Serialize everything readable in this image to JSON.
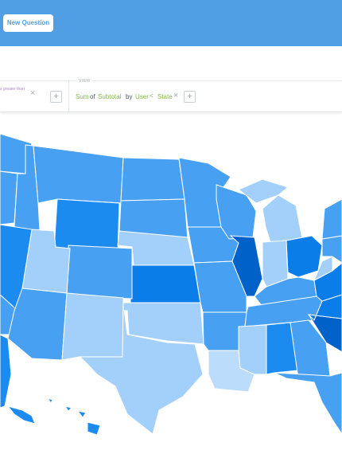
{
  "header": {
    "button": "New Question"
  },
  "filter": {
    "text": "s greater than"
  },
  "view": {
    "label": "VIEW",
    "aggregation": "Sum",
    "of": "of",
    "field": "Subtotal",
    "by": "by",
    "table": "User",
    "column": "State"
  }
}
